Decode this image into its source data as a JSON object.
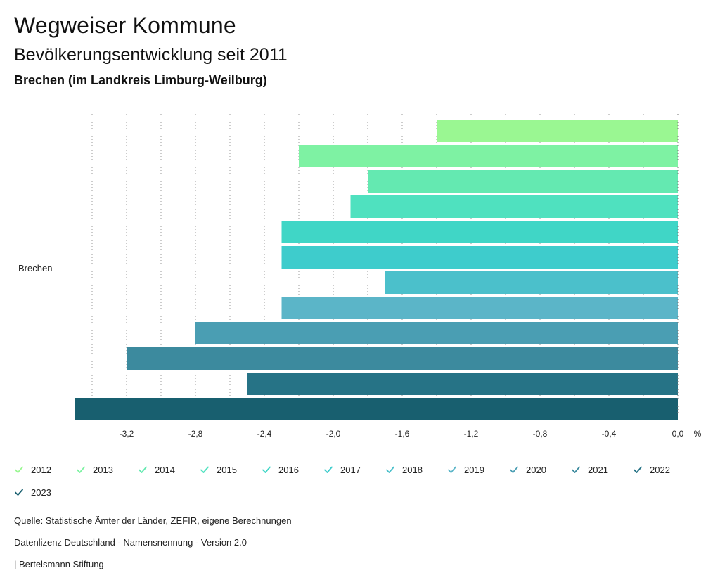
{
  "header": {
    "title": "Wegweiser Kommune",
    "subtitle": "Bevölkerungsentwicklung seit 2011",
    "region": "Brechen (im Landkreis Limburg-Weilburg)"
  },
  "chart_data": {
    "type": "bar",
    "orientation": "horizontal",
    "categories": [
      "Brechen"
    ],
    "series": [
      {
        "name": "2012",
        "values": [
          -1.4
        ],
        "color": "#9af792"
      },
      {
        "name": "2013",
        "values": [
          -2.2
        ],
        "color": "#7ef2a3"
      },
      {
        "name": "2014",
        "values": [
          -1.8
        ],
        "color": "#64e9b1"
      },
      {
        "name": "2015",
        "values": [
          -1.9
        ],
        "color": "#4fe1bf"
      },
      {
        "name": "2016",
        "values": [
          -2.3
        ],
        "color": "#40d6c6"
      },
      {
        "name": "2017",
        "values": [
          -2.3
        ],
        "color": "#3ecccc"
      },
      {
        "name": "2018",
        "values": [
          -1.7
        ],
        "color": "#4bc0cb"
      },
      {
        "name": "2019",
        "values": [
          -2.3
        ],
        "color": "#5bb5c8"
      },
      {
        "name": "2020",
        "values": [
          -2.8
        ],
        "color": "#4a9eb3"
      },
      {
        "name": "2021",
        "values": [
          -3.2
        ],
        "color": "#3c8a9e"
      },
      {
        "name": "2022",
        "values": [
          -2.5
        ],
        "color": "#267386"
      },
      {
        "name": "2023",
        "values": [
          -3.5
        ],
        "color": "#185f6f"
      }
    ],
    "x_ticks": [
      -3.2,
      -2.8,
      -2.4,
      -2.0,
      -1.6,
      -1.2,
      -0.8,
      -0.4,
      0.0
    ],
    "x_tick_labels": [
      "-3,2",
      "-2,8",
      "-2,4",
      "-2,0",
      "-1,6",
      "-1,2",
      "-0,8",
      "-0,4",
      "0,0"
    ],
    "xlim": [
      -3.5,
      0.0
    ],
    "x_unit": "%",
    "grid": "vertical dotted",
    "legend": "bottom"
  },
  "footer": {
    "source": "Quelle: Statistische Ämter der Länder, ZEFIR, eigene Berechnungen",
    "license": "Datenlizenz Deutschland - Namensnennung - Version 2.0",
    "credit": "| Bertelsmann Stiftung"
  }
}
